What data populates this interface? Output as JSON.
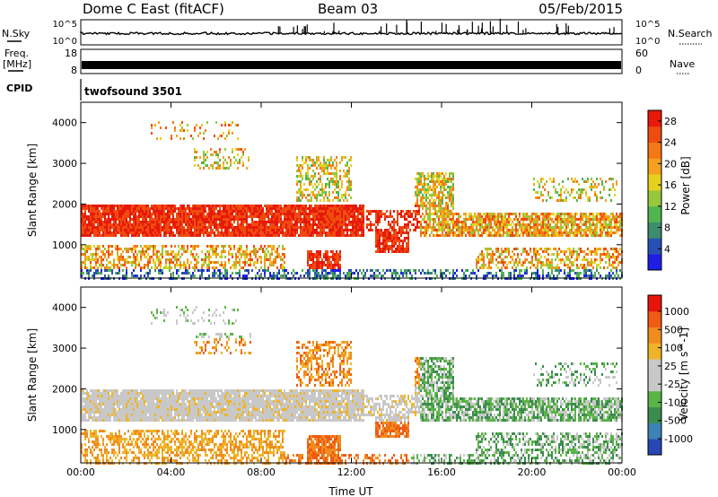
{
  "header": {
    "station": "Dome C East (fitACF)",
    "beam": "Beam 03",
    "date": "05/Feb/2015"
  },
  "strip_labels": {
    "nsky": "N.Sky",
    "nsearch": "N.Search",
    "freq_line1": "Freq.",
    "freq_line2": "[MHz]",
    "nave": "Nave",
    "cpid": "CPID",
    "cpid_value": "twofsound 3501"
  },
  "strip_ticks": {
    "nsky_top": "10^5",
    "nsky_bottom": "10^0",
    "nsearch_top": "10^5",
    "nsearch_bottom": "10^0",
    "freq_top": "18",
    "freq_bottom": "8",
    "nave_top": "60",
    "nave_bottom": "0"
  },
  "colors": {
    "power_scale": [
      "#1e1ee6",
      "#2850b4",
      "#3c8c6e",
      "#50b450",
      "#96c83c",
      "#e6d21e",
      "#f5a01e",
      "#f57814",
      "#f04b0f",
      "#e6190a"
    ],
    "velocity_scale": [
      "#2846b4",
      "#3c82b4",
      "#3c8c50",
      "#5ab446",
      "#c8c8c8",
      "#c8c8c8",
      "#f0b428",
      "#f08c1e",
      "#f05a14",
      "#e6140a"
    ]
  },
  "chart_data": [
    {
      "type": "heatmap",
      "name": "power",
      "xlabel": "",
      "ylabel": "Slant Range [km]",
      "x_range_hours": [
        0,
        24
      ],
      "ylim": [
        180,
        4500
      ],
      "y_ticks": [
        "1000",
        "2000",
        "3000",
        "4000"
      ],
      "colorbar_label": "Power [dB]",
      "colorbar_ticks": [
        "4",
        "8",
        "12",
        "16",
        "20",
        "24",
        "28"
      ],
      "colorbar_range": [
        0,
        30
      ]
    },
    {
      "type": "heatmap",
      "name": "velocity",
      "xlabel": "Time UT",
      "ylabel": "Slant Range [km]",
      "x_range_hours": [
        0,
        24
      ],
      "x_ticks": [
        "00:00",
        "04:00",
        "08:00",
        "12:00",
        "16:00",
        "20:00",
        "00:00"
      ],
      "ylim": [
        180,
        4500
      ],
      "y_ticks": [
        "1000",
        "2000",
        "3000",
        "4000"
      ],
      "colorbar_label": "Velocity [m s^-1]",
      "colorbar_ticks": [
        "1000",
        "500",
        "100",
        "25",
        "-25",
        "-100",
        "-500",
        "-1000"
      ]
    }
  ]
}
